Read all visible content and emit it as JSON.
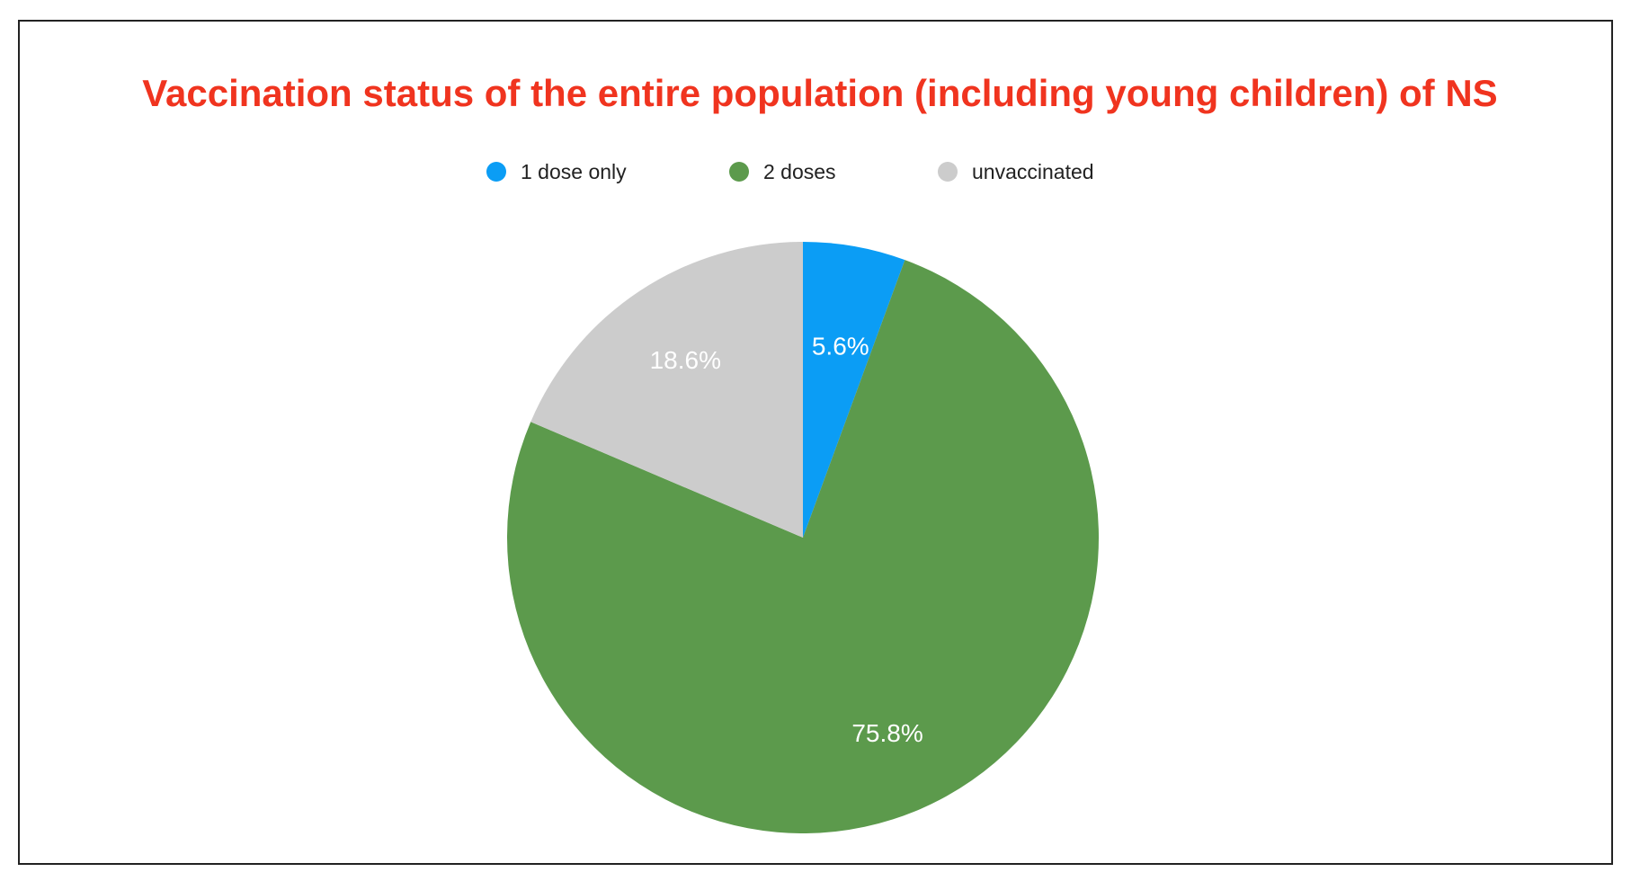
{
  "chart_data": {
    "type": "pie",
    "title": "Vaccination status of the entire population (including young children) of NS",
    "legend_position": "top",
    "slices": [
      {
        "label": "1 dose only",
        "value": 5.6,
        "value_label": "5.6%",
        "color": "#0b9df5"
      },
      {
        "label": "2 doses",
        "value": 75.8,
        "value_label": "75.8%",
        "color": "#5c9a4c"
      },
      {
        "label": "unvaccinated",
        "value": 18.6,
        "value_label": "18.6%",
        "color": "#cccccc"
      }
    ]
  },
  "colors": {
    "title": "#f0341f",
    "border": "#222222",
    "background": "#ffffff"
  }
}
